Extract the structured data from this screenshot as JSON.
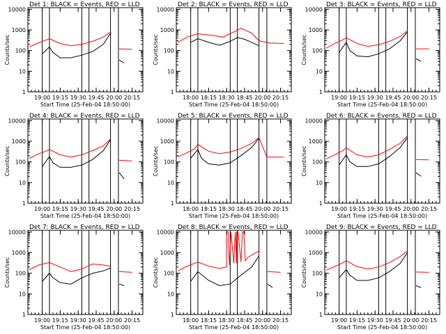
{
  "figure": {
    "xlabel": "Start Time (25-Feb-04 18:50:00)",
    "ylabel": "Counts/sec",
    "colors": {
      "events": "#000000",
      "lld": "#ff0000",
      "axes": "#000000"
    }
  },
  "chart_data": [
    {
      "type": "line",
      "title": "Det 1: BLACK = Events, RED = LLD",
      "xticks": [
        "19:00",
        "19:15",
        "19:30",
        "19:45",
        "20:00",
        "20:15"
      ],
      "xlim": [
        18.8,
        20.4
      ],
      "ylim": [
        1,
        12000
      ],
      "yscale": "log",
      "yticks": [
        "1",
        "10",
        "100",
        "1000",
        "10000"
      ],
      "vlines": [
        19.0,
        19.1,
        19.55,
        19.65,
        19.95,
        20.06
      ],
      "series": [
        {
          "color": "#000000",
          "x": [
            19.0,
            19.1,
            19.15,
            19.25,
            19.4,
            19.55,
            19.7,
            19.85,
            19.95
          ],
          "y": [
            70,
            150,
            80,
            45,
            45,
            60,
            90,
            200,
            700
          ]
        },
        {
          "color": "#000000",
          "x": [
            20.07,
            20.14
          ],
          "y": [
            35,
            25
          ]
        },
        {
          "color": "#ff0000",
          "x": [
            18.82,
            18.95,
            19.05,
            19.1,
            19.25,
            19.4,
            19.55,
            19.7,
            19.85,
            19.95
          ],
          "y": [
            150,
            240,
            320,
            380,
            220,
            170,
            200,
            280,
            450,
            800
          ]
        },
        {
          "color": "#ff0000",
          "x": [
            20.07,
            20.25
          ],
          "y": [
            120,
            115
          ]
        }
      ]
    },
    {
      "type": "line",
      "title": "Det 2: BLACK = Events, RED = LLD",
      "xticks": [
        "18:00",
        "18:15",
        "18:30",
        "18:45",
        "20:00",
        "20:15"
      ],
      "xlim": [
        18.8,
        20.4
      ],
      "ylim": [
        1,
        12000
      ],
      "yscale": "log",
      "yticks": [
        "1",
        "10",
        "100",
        "1000",
        "10000"
      ],
      "vlines": [
        19.0,
        19.1,
        19.55,
        19.65,
        19.95,
        20.06
      ],
      "series": [
        {
          "color": "#000000",
          "x": [
            19.0,
            19.1,
            19.25,
            19.4,
            19.55,
            19.65,
            19.75,
            19.85,
            19.95
          ],
          "y": [
            250,
            380,
            250,
            180,
            280,
            430,
            350,
            250,
            170
          ]
        },
        {
          "color": "#ff0000",
          "x": [
            18.82,
            18.95,
            19.1,
            19.3,
            19.45,
            19.6,
            19.7,
            19.85,
            19.95,
            20.1,
            20.3
          ],
          "y": [
            250,
            450,
            650,
            550,
            450,
            800,
            1200,
            700,
            300,
            230,
            220
          ]
        }
      ]
    },
    {
      "type": "line",
      "title": "Det 3: BLACK = Events, RED = LLD",
      "xticks": [
        "19:00",
        "19:15",
        "19:30",
        "19:45",
        "20:00",
        "20:15"
      ],
      "xlim": [
        18.8,
        20.4
      ],
      "ylim": [
        1,
        12000
      ],
      "yscale": "log",
      "yticks": [
        "1",
        "10",
        "100",
        "1000",
        "10000"
      ],
      "vlines": [
        19.0,
        19.1,
        19.55,
        19.65,
        19.95,
        20.06
      ],
      "series": [
        {
          "color": "#000000",
          "x": [
            19.0,
            19.1,
            19.15,
            19.25,
            19.4,
            19.55,
            19.7,
            19.85,
            19.95
          ],
          "y": [
            80,
            250,
            100,
            55,
            50,
            70,
            120,
            300,
            800
          ]
        },
        {
          "color": "#000000",
          "x": [
            20.07,
            20.14
          ],
          "y": [
            40,
            30
          ]
        },
        {
          "color": "#ff0000",
          "x": [
            18.82,
            18.95,
            19.05,
            19.1,
            19.25,
            19.4,
            19.55,
            19.7,
            19.85,
            19.95
          ],
          "y": [
            130,
            230,
            330,
            420,
            220,
            160,
            190,
            280,
            480,
            900
          ]
        },
        {
          "color": "#ff0000",
          "x": [
            20.07,
            20.25
          ],
          "y": [
            120,
            120
          ]
        }
      ]
    },
    {
      "type": "line",
      "title": "Det 4: BLACK = Events, RED = LLD",
      "xticks": [
        "19:00",
        "19:15",
        "19:30",
        "19:45",
        "20:00",
        "20:15"
      ],
      "xlim": [
        18.8,
        20.4
      ],
      "ylim": [
        1,
        12000
      ],
      "yscale": "log",
      "yticks": [
        "1",
        "10",
        "100",
        "1000",
        "10000"
      ],
      "vlines": [
        19.0,
        19.1,
        19.55,
        19.65,
        19.95,
        20.06
      ],
      "series": [
        {
          "color": "#000000",
          "x": [
            19.0,
            19.1,
            19.15,
            19.25,
            19.4,
            19.55,
            19.7,
            19.85,
            19.95
          ],
          "y": [
            60,
            180,
            90,
            55,
            55,
            70,
            130,
            350,
            1200
          ]
        },
        {
          "color": "#000000",
          "x": [
            20.07,
            20.14
          ],
          "y": [
            30,
            15
          ]
        },
        {
          "color": "#ff0000",
          "x": [
            18.82,
            18.95,
            19.05,
            19.1,
            19.25,
            19.4,
            19.55,
            19.7,
            19.85,
            19.95
          ],
          "y": [
            150,
            250,
            330,
            400,
            220,
            170,
            220,
            350,
            600,
            1300
          ]
        },
        {
          "color": "#ff0000",
          "x": [
            20.07,
            20.25
          ],
          "y": [
            120,
            110
          ]
        }
      ]
    },
    {
      "type": "line",
      "title": "Det 5: BLACK = Events, RED = LLD",
      "xticks": [
        "18:00",
        "18:15",
        "18:30",
        "18:45",
        "20:00",
        "20:15"
      ],
      "xlim": [
        18.8,
        20.4
      ],
      "ylim": [
        1,
        12000
      ],
      "yscale": "log",
      "yticks": [
        "1",
        "10",
        "100",
        "1000",
        "10000"
      ],
      "vlines": [
        19.0,
        19.1,
        19.55,
        19.65,
        19.95,
        20.06
      ],
      "series": [
        {
          "color": "#000000",
          "x": [
            19.0,
            19.1,
            19.15,
            19.25,
            19.4,
            19.55,
            19.7,
            19.85,
            19.95
          ],
          "y": [
            150,
            400,
            150,
            80,
            70,
            90,
            200,
            500,
            1400
          ]
        },
        {
          "color": "#ff0000",
          "x": [
            18.82,
            18.95,
            19.05,
            19.1,
            19.25,
            19.4,
            19.55,
            19.7,
            19.85,
            19.95,
            20.06,
            20.3
          ],
          "y": [
            180,
            280,
            420,
            700,
            330,
            250,
            300,
            450,
            800,
            1500,
            170,
            170
          ]
        }
      ]
    },
    {
      "type": "line",
      "title": "Det 6: BLACK = Events, RED = LLD",
      "xticks": [
        "19:00",
        "19:15",
        "19:30",
        "19:45",
        "20:00",
        "20:15"
      ],
      "xlim": [
        18.8,
        20.4
      ],
      "ylim": [
        1,
        12000
      ],
      "yscale": "log",
      "yticks": [
        "1",
        "10",
        "100",
        "1000",
        "10000"
      ],
      "vlines": [
        19.0,
        19.1,
        19.55,
        19.65,
        19.95,
        20.06
      ],
      "series": [
        {
          "color": "#000000",
          "x": [
            19.0,
            19.1,
            19.15,
            19.25,
            19.4,
            19.55,
            19.7,
            19.85,
            19.95
          ],
          "y": [
            70,
            220,
            100,
            60,
            60,
            80,
            180,
            500,
            1500
          ]
        },
        {
          "color": "#000000",
          "x": [
            20.07,
            20.14
          ],
          "y": [
            30,
            20
          ]
        },
        {
          "color": "#ff0000",
          "x": [
            18.82,
            18.95,
            19.05,
            19.1,
            19.25,
            19.4,
            19.55,
            19.7,
            19.85,
            19.95
          ],
          "y": [
            140,
            230,
            350,
            480,
            220,
            170,
            220,
            400,
            800,
            1800
          ]
        },
        {
          "color": "#ff0000",
          "x": [
            20.07,
            20.25
          ],
          "y": [
            130,
            125
          ]
        }
      ]
    },
    {
      "type": "line",
      "title": "Det 7: BLACK = Events, RED = LLD",
      "xticks": [
        "19:00",
        "19:15",
        "19:30",
        "19:45",
        "20:00",
        "20:15"
      ],
      "xlim": [
        18.8,
        20.4
      ],
      "ylim": [
        1,
        12000
      ],
      "yscale": "log",
      "yticks": [
        "1",
        "10",
        "100",
        "1000",
        "10000"
      ],
      "vlines": [
        19.0,
        19.1,
        19.55,
        19.65,
        19.95,
        20.06
      ],
      "series": [
        {
          "color": "#000000",
          "x": [
            19.0,
            19.1,
            19.15,
            19.25,
            19.4,
            19.55,
            19.7,
            19.85,
            19.95
          ],
          "y": [
            40,
            100,
            60,
            35,
            30,
            60,
            100,
            130,
            180
          ]
        },
        {
          "color": "#000000",
          "x": [
            20.07,
            20.14
          ],
          "y": [
            30,
            25
          ]
        },
        {
          "color": "#ff0000",
          "x": [
            18.82,
            18.95,
            19.1,
            19.25,
            19.4,
            19.55,
            19.7,
            19.85,
            19.95
          ],
          "y": [
            150,
            250,
            330,
            200,
            120,
            160,
            280,
            250,
            220
          ]
        },
        {
          "color": "#ff0000",
          "x": [
            20.07,
            20.25
          ],
          "y": [
            120,
            110
          ]
        }
      ]
    },
    {
      "type": "line",
      "title": "Det 8: BLACK = Events, RED = LLD",
      "xticks": [
        "18:00",
        "18:15",
        "18:30",
        "18:45",
        "20:00",
        "20:15"
      ],
      "xlim": [
        18.8,
        20.4
      ],
      "ylim": [
        1,
        12000
      ],
      "yscale": "log",
      "yticks": [
        "1",
        "10",
        "100",
        "1000",
        "10000"
      ],
      "vlines": [
        19.0,
        19.1,
        19.55,
        19.65,
        19.95,
        20.06
      ],
      "series": [
        {
          "color": "#000000",
          "x": [
            19.0,
            19.1,
            19.25,
            19.4,
            19.55,
            19.7,
            19.85,
            19.95
          ],
          "y": [
            40,
            120,
            45,
            25,
            30,
            80,
            200,
            700
          ]
        },
        {
          "color": "#000000",
          "x": [
            20.07,
            20.14
          ],
          "y": [
            30,
            20
          ]
        },
        {
          "color": "#ff0000",
          "x": [
            18.82,
            18.95,
            19.1,
            19.25,
            19.4,
            19.5,
            19.5,
            19.52,
            19.54,
            19.56,
            19.56,
            19.6,
            19.62,
            19.64,
            19.64,
            19.66,
            19.7,
            19.72,
            19.72,
            19.74,
            19.76,
            19.76,
            19.8,
            19.95
          ],
          "y": [
            130,
            220,
            350,
            220,
            170,
            200,
            10000,
            10000,
            250,
            10000,
            10000,
            300,
            10000,
            300,
            10000,
            10000,
            350,
            10000,
            10000,
            10000,
            400,
            400,
            600,
            1200
          ]
        },
        {
          "color": "#ff0000",
          "x": [
            20.07,
            20.25
          ],
          "y": [
            120,
            110
          ]
        }
      ]
    },
    {
      "type": "line",
      "title": "Det 9: BLACK = Events, RED = LLD",
      "xticks": [
        "19:00",
        "19:15",
        "19:30",
        "19:45",
        "20:00",
        "20:15"
      ],
      "xlim": [
        18.8,
        20.4
      ],
      "ylim": [
        1,
        12000
      ],
      "yscale": "log",
      "yticks": [
        "1",
        "10",
        "100",
        "1000",
        "10000"
      ],
      "vlines": [
        19.0,
        19.1,
        19.55,
        19.65,
        19.95,
        20.06
      ],
      "series": [
        {
          "color": "#000000",
          "x": [
            19.0,
            19.1,
            19.15,
            19.25,
            19.4,
            19.55,
            19.7,
            19.85,
            19.95
          ],
          "y": [
            60,
            150,
            80,
            45,
            45,
            60,
            120,
            300,
            1000
          ]
        },
        {
          "color": "#000000",
          "x": [
            20.07,
            20.14
          ],
          "y": [
            25,
            20
          ]
        },
        {
          "color": "#ff0000",
          "x": [
            18.82,
            18.95,
            19.05,
            19.1,
            19.25,
            19.4,
            19.55,
            19.7,
            19.85,
            19.95
          ],
          "y": [
            140,
            220,
            320,
            400,
            210,
            160,
            200,
            330,
            650,
            1200
          ]
        },
        {
          "color": "#ff0000",
          "x": [
            20.07,
            20.25
          ],
          "y": [
            115,
            110
          ]
        }
      ]
    }
  ]
}
